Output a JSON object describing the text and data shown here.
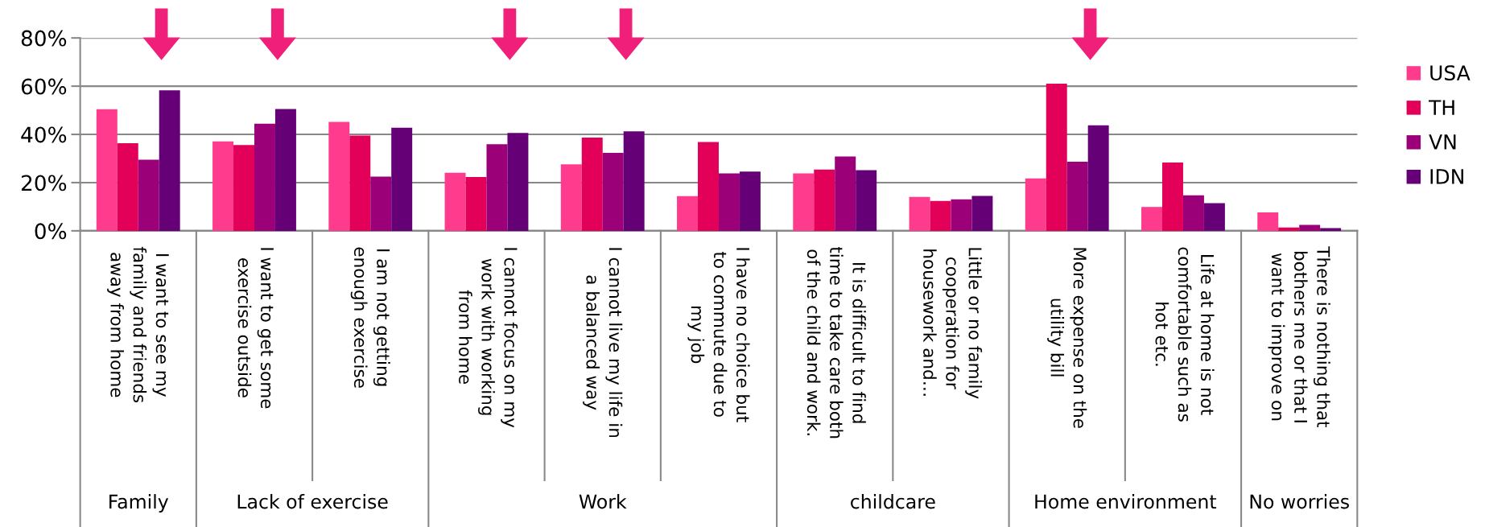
{
  "chart_data": {
    "type": "bar",
    "categories": [
      "I want to see my\nfamily and friends\naway from home",
      "I want to get some\nexercise outside",
      "I am not getting\nenough exercise",
      "I cannot focus on my\nwork with working\nfrom home",
      "I cannot live my life in\na balanced way",
      "I have no choice but\nto commute due to\nmy job",
      "It is difficult to find\ntime to take care both\nof the child and work.",
      "Little or no family\ncooperation for\nhousework and…",
      "More expense on the\nutility bill",
      "Life at home is not\ncomfortable such as\nhot etc.",
      "There is nothing that\nbothers me or that I\nwant to improve on"
    ],
    "series": [
      {
        "name": "USA",
        "color": "#ff3b8d",
        "values": [
          50.4,
          37.1,
          45.2,
          24.1,
          27.6,
          14.4,
          23.8,
          14.1,
          21.7,
          9.9,
          7.6
        ]
      },
      {
        "name": "TH",
        "color": "#e20059",
        "values": [
          36.3,
          35.6,
          39.5,
          22.3,
          38.7,
          36.8,
          25.4,
          12.4,
          61.0,
          28.3,
          1.4
        ]
      },
      {
        "name": "VN",
        "color": "#9b0079",
        "values": [
          29.5,
          44.4,
          22.5,
          35.9,
          32.3,
          23.8,
          30.8,
          13.1,
          28.7,
          14.7,
          2.5
        ]
      },
      {
        "name": "IDN",
        "color": "#660077",
        "values": [
          58.3,
          50.5,
          42.8,
          40.6,
          41.3,
          24.6,
          25.2,
          14.5,
          43.8,
          11.5,
          1.1
        ]
      }
    ],
    "ylim": [
      0,
      80
    ],
    "yticks": [
      {
        "value": 0,
        "label": "0%"
      },
      {
        "value": 20,
        "label": "20%"
      },
      {
        "value": 40,
        "label": "40%"
      },
      {
        "value": 60,
        "label": "60%"
      },
      {
        "value": 80,
        "label": "80%"
      }
    ],
    "grid": "y",
    "legend": "right",
    "annotations": [
      "Family",
      "Lack of exercise",
      "Work",
      "childcare",
      "Home environment",
      "No worries"
    ]
  }
}
